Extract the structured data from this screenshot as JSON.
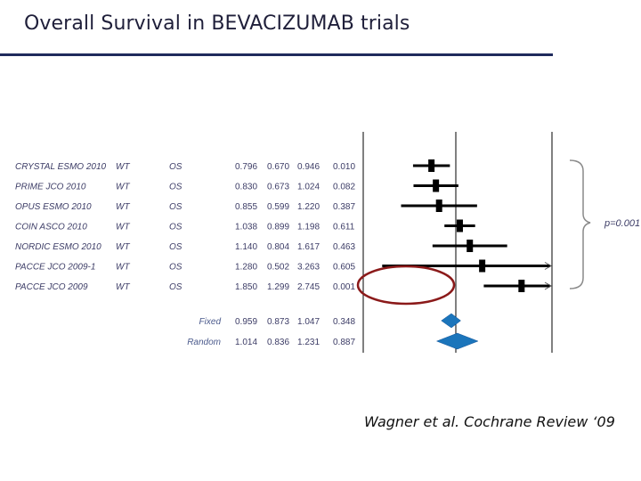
{
  "slide": {
    "title": "Overall Survival in BEVACIZUMAB trials",
    "citation": "Wagner et al. Cochrane Review ‘09"
  },
  "chart_data": {
    "type": "forest",
    "studies": [
      {
        "study": "CRYSTAL ESMO 2010",
        "subgroup": "WT",
        "outcome": "OS",
        "hr": "0.796",
        "lower": "0.670",
        "upper": "0.946",
        "p": "0.010"
      },
      {
        "study": "PRIME JCO 2010",
        "subgroup": "WT",
        "outcome": "OS",
        "hr": "0.830",
        "lower": "0.673",
        "upper": "1.024",
        "p": "0.082"
      },
      {
        "study": "OPUS ESMO 2010",
        "subgroup": "WT",
        "outcome": "OS",
        "hr": "0.855",
        "lower": "0.599",
        "upper": "1.220",
        "p": "0.387"
      },
      {
        "study": "COIN ASCO 2010",
        "subgroup": "WT",
        "outcome": "OS",
        "hr": "1.038",
        "lower": "0.899",
        "upper": "1.198",
        "p": "0.611"
      },
      {
        "study": "NORDIC ESMO 2010",
        "subgroup": "WT",
        "outcome": "OS",
        "hr": "1.140",
        "lower": "0.804",
        "upper": "1.617",
        "p": "0.463"
      },
      {
        "study": "PACCE JCO 2009-1",
        "subgroup": "WT",
        "outcome": "OS",
        "hr": "1.280",
        "lower": "0.502",
        "upper": "3.263",
        "p": "0.605"
      },
      {
        "study": "PACCE JCO 2009",
        "subgroup": "WT",
        "outcome": "OS",
        "hr": "1.850",
        "lower": "1.299",
        "upper": "2.745",
        "p": "0.001"
      }
    ],
    "summary": [
      {
        "label": "Fixed",
        "hr": "0.959",
        "lower": "0.873",
        "upper": "1.047",
        "p": "0.348"
      },
      {
        "label": "Random",
        "hr": "1.014",
        "lower": "0.836",
        "upper": "1.231",
        "p": "0.887"
      }
    ],
    "heterogeneity_label": "p=0.001",
    "reference_line": 1,
    "colors": {
      "marker": "#000000",
      "diamond": "#1b75bb",
      "highlight": "#8b1a1a"
    }
  }
}
